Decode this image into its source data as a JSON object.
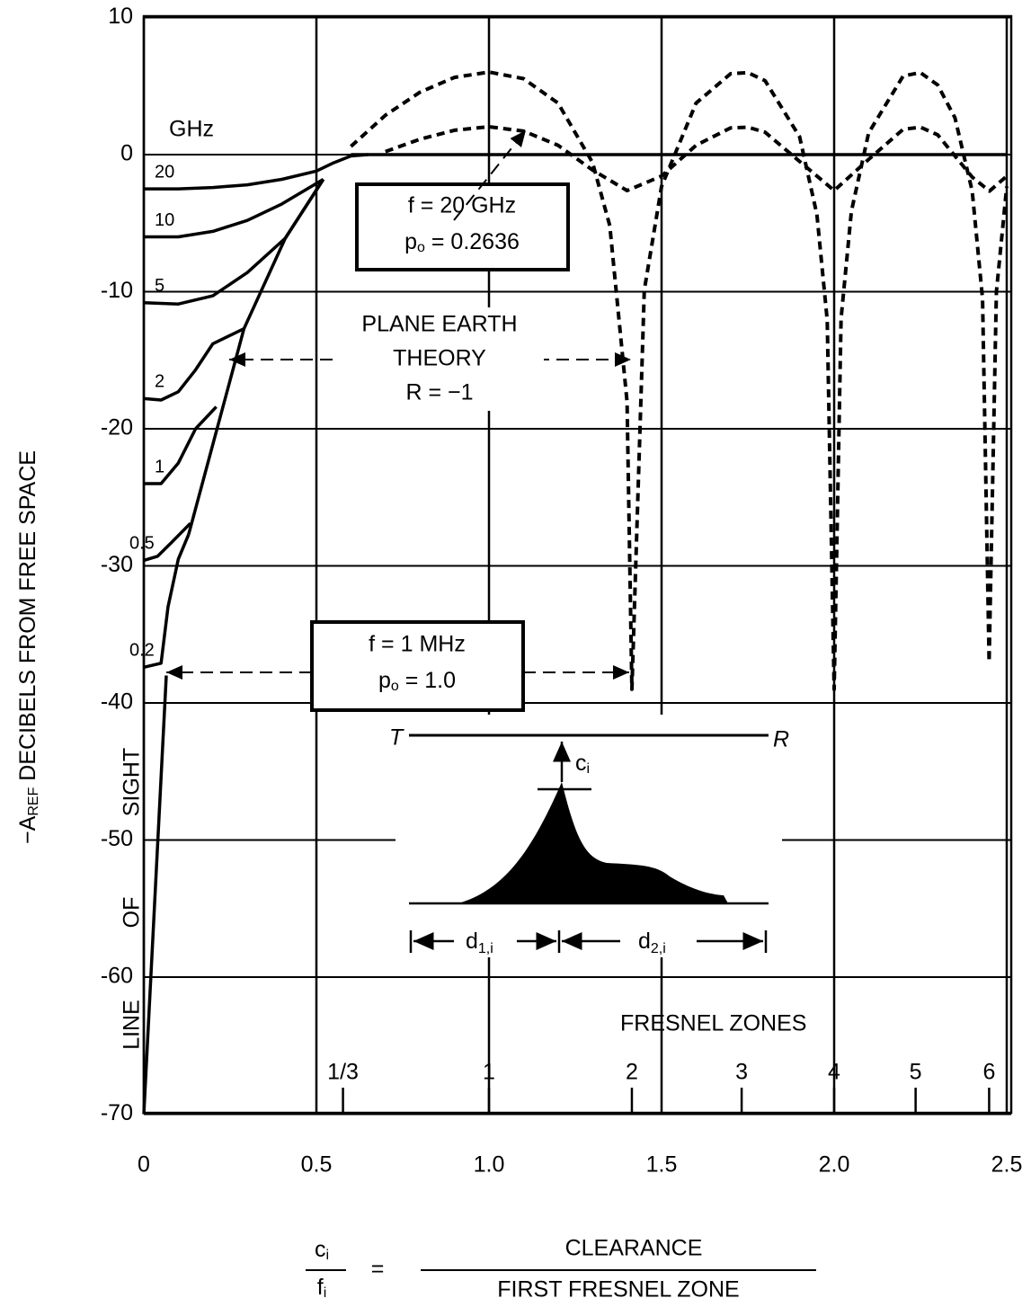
{
  "chart_data": {
    "type": "line",
    "y_axis_label": {
      "main": "−A",
      "sub": "REF",
      "rest": " DECIBELS FROM FREE SPACE"
    },
    "x_axis_label": {
      "numerator": {
        "main": "c",
        "sub": "i"
      },
      "denominator": {
        "main": "f",
        "sub": "i"
      },
      "equals": "=",
      "right_numerator": "CLEARANCE",
      "right_denominator": "FIRST FRESNEL ZONE"
    },
    "xlim": [
      0,
      2.5
    ],
    "ylim": [
      -70,
      10
    ],
    "xticks": [
      0,
      0.5,
      {
        "value": 1,
        "label": "1.0"
      },
      1.5,
      {
        "value": 2,
        "label": "2.0"
      },
      2.5
    ],
    "yticks": [
      10,
      0,
      -10,
      -20,
      -30,
      -40,
      -50,
      -60,
      -70
    ],
    "grid": true,
    "color": "#000000",
    "series_label_title": "GHz",
    "series": [
      {
        "name": "20",
        "style": "solid",
        "x": [
          0,
          0.1,
          0.2,
          0.3,
          0.4,
          0.5,
          0.55,
          0.6,
          0.65
        ],
        "values": [
          -2.5,
          -2.5,
          -2.4,
          -2.2,
          -1.8,
          -1.2,
          -0.6,
          -0.1,
          0
        ]
      },
      {
        "name": "10",
        "style": "solid",
        "x": [
          0,
          0.1,
          0.2,
          0.3,
          0.4,
          0.52
        ],
        "values": [
          -6,
          -6,
          -5.6,
          -4.8,
          -3.6,
          -1.8
        ]
      },
      {
        "name": "5",
        "style": "solid",
        "x": [
          0,
          0.1,
          0.2,
          0.3,
          0.41,
          0.52
        ],
        "values": [
          -10.8,
          -10.9,
          -10.3,
          -8.6,
          -6.1,
          -1.8
        ]
      },
      {
        "name": "2",
        "style": "solid",
        "x": [
          0,
          0.05,
          0.1,
          0.15,
          0.2,
          0.29
        ],
        "values": [
          -17.8,
          -17.9,
          -17.3,
          -15.7,
          -13.8,
          -12.7
        ]
      },
      {
        "name": "1",
        "style": "solid",
        "x": [
          0,
          0.05,
          0.1,
          0.15,
          0.21
        ],
        "values": [
          -24,
          -24,
          -22.5,
          -20,
          -18.4
        ]
      },
      {
        "name": "0.5",
        "style": "solid",
        "x": [
          0,
          0.04,
          0.08,
          0.135
        ],
        "values": [
          -29.6,
          -29.3,
          -28.3,
          -26.9
        ]
      },
      {
        "name": "0.2",
        "style": "solid",
        "x": [
          0,
          0.05,
          0.07,
          0.1,
          0.13
        ],
        "values": [
          -37.4,
          -37.1,
          -33,
          -29.5,
          -27.7
        ]
      },
      {
        "style": "solid",
        "x": [
          0,
          0.065
        ],
        "values": [
          -70,
          -38
        ]
      },
      {
        "style": "solid",
        "x": [
          0.13,
          0.29,
          0.41,
          0.52
        ],
        "values": [
          -27.7,
          -12.7,
          -6.1,
          -1.8
        ]
      },
      {
        "style": "solid",
        "x": [
          0.6,
          2.5
        ],
        "values": [
          0,
          0
        ]
      },
      {
        "style": "dashed",
        "x": [
          0.6,
          0.7,
          0.8,
          0.9,
          1.0,
          1.1,
          1.2,
          1.3,
          1.35,
          1.4,
          1.414,
          1.45,
          1.5,
          1.6,
          1.7,
          1.75,
          1.8,
          1.9,
          1.95,
          1.98,
          2.0,
          2.02,
          2.05,
          2.1,
          2.2,
          2.25,
          2.3,
          2.35,
          2.4,
          2.43,
          2.449,
          2.47,
          2.5
        ],
        "values": [
          0.6,
          2.87,
          4.55,
          5.63,
          6.02,
          5.54,
          3.76,
          -0.58,
          -5.19,
          -18.02,
          -39,
          -9.88,
          -2.32,
          3.76,
          5.9,
          5.98,
          5.39,
          1.3,
          -4.36,
          -12.08,
          -39,
          -11.96,
          -4.13,
          1.59,
          5.74,
          5.98,
          5.08,
          2.69,
          -2.66,
          -10.51,
          -37,
          -10.02,
          -2.32
        ]
      },
      {
        "style": "dashed",
        "x": [
          0.7,
          0.8,
          0.9,
          1.0,
          1.1,
          1.2,
          1.3,
          1.4,
          1.5,
          1.6,
          1.7,
          1.75,
          1.8,
          1.9,
          2.0,
          2.1,
          2.2,
          2.25,
          2.3,
          2.4,
          2.45,
          2.5
        ],
        "values": [
          0.22,
          1.12,
          1.78,
          2.03,
          1.72,
          0.68,
          -1.12,
          -2.62,
          -1.57,
          0.68,
          1.95,
          2.0,
          1.63,
          -0.5,
          -2.62,
          -0.35,
          1.85,
          2.0,
          1.44,
          -1.64,
          -2.66,
          -1.57
        ]
      }
    ],
    "fresnel_label": "FRESNEL ZONES",
    "fresnel_ticks": [
      {
        "value": 0.577,
        "label": "1/3"
      },
      1,
      {
        "value": 1.414,
        "label": "2"
      },
      {
        "value": 1.732,
        "label": "3"
      },
      {
        "value": 2,
        "label": "4"
      },
      {
        "value": 2.236,
        "label": "5"
      },
      {
        "value": 2.449,
        "label": "6"
      }
    ],
    "box_20ghz": {
      "line1": "f = 20 GHz",
      "main": "p",
      "sub": "o",
      "rest": " = 0.2636"
    },
    "box_1mhz": {
      "line1": "f = 1 MHz",
      "main": "p",
      "sub": "o",
      "rest": " = 1.0"
    },
    "plane_earth": [
      "PLANE EARTH",
      "THEORY",
      "R = −1"
    ],
    "line_of_sight": [
      "LINE",
      "OF",
      "SIGHT"
    ],
    "inset": {
      "t": "T",
      "r": "R",
      "c": {
        "main": "c",
        "sub": "i"
      },
      "d1": {
        "main": "d",
        "sub": "1,i"
      },
      "d2": {
        "main": "d",
        "sub": "2,i"
      }
    }
  }
}
